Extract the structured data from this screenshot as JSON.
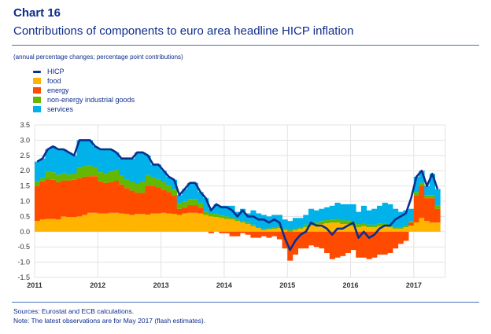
{
  "header": {
    "chart_number": "Chart 16",
    "title": "Contributions of components to euro area headline HICP inflation",
    "subtitle": "(annual percentage changes; percentage point contributions)"
  },
  "legend": [
    {
      "label": "HICP",
      "color": "#0a2f8f",
      "kind": "line"
    },
    {
      "label": "food",
      "color": "#ffb400",
      "kind": "area"
    },
    {
      "label": "energy",
      "color": "#ff4b00",
      "kind": "area"
    },
    {
      "label": "non-energy industrial goods",
      "color": "#65b800",
      "kind": "area"
    },
    {
      "label": "services",
      "color": "#00b1ea",
      "kind": "area"
    }
  ],
  "footnotes": {
    "sources": "Sources: Eurostat and ECB calculations.",
    "note": "Note: The latest observations are for May 2017 (flash estimates)."
  },
  "chart_data": {
    "type": "bar",
    "stacked": true,
    "title": "Contributions of components to euro area headline HICP inflation",
    "subtitle": "(annual percentage changes; percentage point contributions)",
    "xlabel": "",
    "ylabel": "",
    "x_start": "2011-01",
    "x_end": "2017-05",
    "frequency": "monthly",
    "x_tick_labels": [
      "2011",
      "2012",
      "2013",
      "2014",
      "2015",
      "2016",
      "2017"
    ],
    "y_tick_labels": [
      "3.5",
      "3.0",
      "2.5",
      "2.0",
      "1.5",
      "1.0",
      "0.5",
      "0.0",
      "-0.5",
      "-1.0",
      "-1.5"
    ],
    "ylim": [
      -1.5,
      3.5
    ],
    "grid": true,
    "legend_position": "top-left",
    "series": [
      {
        "name": "food",
        "type": "stacked-bar",
        "values": [
          0.35,
          0.4,
          0.42,
          0.42,
          0.4,
          0.5,
          0.48,
          0.48,
          0.5,
          0.55,
          0.62,
          0.62,
          0.6,
          0.6,
          0.62,
          0.62,
          0.6,
          0.58,
          0.55,
          0.58,
          0.58,
          0.56,
          0.6,
          0.6,
          0.62,
          0.6,
          0.58,
          0.55,
          0.6,
          0.62,
          0.62,
          0.6,
          0.55,
          0.5,
          0.48,
          0.45,
          0.42,
          0.4,
          0.35,
          0.3,
          0.25,
          0.18,
          0.12,
          0.05,
          0.08,
          0.1,
          0.12,
          0.05,
          0.0,
          0.05,
          0.1,
          0.15,
          0.2,
          0.22,
          0.25,
          0.28,
          0.3,
          0.3,
          0.25,
          0.25,
          0.2,
          0.15,
          0.18,
          0.15,
          0.15,
          0.18,
          0.2,
          0.15,
          0.1,
          0.1,
          0.15,
          0.2,
          0.3,
          0.45,
          0.35,
          0.3,
          0.3
        ]
      },
      {
        "name": "energy",
        "type": "stacked-bar",
        "values": [
          1.15,
          1.25,
          1.3,
          1.28,
          1.22,
          1.18,
          1.2,
          1.22,
          1.25,
          1.25,
          1.2,
          1.2,
          1.05,
          1.0,
          1.0,
          1.05,
          0.95,
          0.85,
          0.8,
          0.7,
          0.7,
          0.95,
          0.9,
          0.85,
          0.75,
          0.7,
          0.6,
          0.2,
          0.2,
          0.25,
          0.25,
          0.2,
          0.0,
          -0.05,
          0.0,
          -0.05,
          -0.05,
          -0.15,
          -0.15,
          -0.05,
          -0.1,
          -0.2,
          -0.2,
          -0.15,
          -0.2,
          -0.15,
          -0.25,
          -0.55,
          -0.95,
          -0.75,
          -0.55,
          -0.55,
          -0.45,
          -0.5,
          -0.55,
          -0.7,
          -0.9,
          -0.85,
          -0.8,
          -0.7,
          -0.6,
          -0.85,
          -0.85,
          -0.9,
          -0.85,
          -0.75,
          -0.75,
          -0.7,
          -0.55,
          -0.4,
          -0.3,
          0.1,
          0.9,
          1.05,
          0.75,
          0.8,
          0.45
        ]
      },
      {
        "name": "non-energy industrial goods",
        "type": "stacked-bar",
        "values": [
          0.15,
          0.1,
          0.25,
          0.25,
          0.25,
          0.25,
          0.2,
          0.2,
          0.35,
          0.35,
          0.35,
          0.3,
          0.3,
          0.3,
          0.35,
          0.35,
          0.3,
          0.28,
          0.28,
          0.3,
          0.35,
          0.35,
          0.3,
          0.28,
          0.25,
          0.22,
          0.2,
          0.18,
          0.18,
          0.2,
          0.2,
          0.15,
          0.12,
          0.1,
          0.1,
          0.08,
          0.08,
          0.05,
          0.05,
          0.05,
          0.05,
          0.05,
          0.03,
          0.03,
          0.03,
          0.05,
          0.05,
          0.05,
          0.05,
          0.05,
          0.05,
          0.08,
          0.08,
          0.08,
          0.1,
          0.1,
          0.1,
          0.12,
          0.12,
          0.12,
          0.12,
          0.1,
          0.1,
          0.08,
          0.08,
          0.08,
          0.08,
          0.08,
          0.05,
          0.05,
          0.05,
          0.05,
          0.1,
          0.1,
          0.1,
          0.1,
          0.1
        ]
      },
      {
        "name": "services",
        "type": "stacked-bar",
        "values": [
          0.65,
          0.65,
          0.73,
          0.85,
          0.83,
          0.77,
          0.72,
          0.6,
          0.9,
          0.85,
          0.83,
          0.68,
          0.75,
          0.8,
          0.73,
          0.58,
          0.55,
          0.69,
          0.77,
          1.02,
          0.97,
          0.64,
          0.4,
          0.47,
          0.38,
          0.28,
          0.32,
          0.27,
          0.42,
          0.53,
          0.53,
          0.35,
          0.43,
          0.15,
          0.32,
          0.32,
          0.35,
          0.4,
          0.25,
          0.4,
          0.3,
          0.47,
          0.45,
          0.47,
          0.39,
          0.4,
          0.38,
          0.3,
          0.3,
          0.35,
          0.3,
          0.32,
          0.47,
          0.4,
          0.4,
          0.42,
          0.45,
          0.53,
          0.53,
          0.53,
          0.58,
          0.4,
          0.57,
          0.47,
          0.52,
          0.59,
          0.67,
          0.67,
          0.6,
          0.5,
          0.5,
          0.4,
          0.5,
          0.4,
          0.3,
          0.7,
          0.55
        ]
      },
      {
        "name": "HICP",
        "type": "line",
        "values": [
          2.3,
          2.4,
          2.7,
          2.8,
          2.7,
          2.7,
          2.6,
          2.5,
          3.0,
          3.0,
          3.0,
          2.8,
          2.7,
          2.7,
          2.7,
          2.6,
          2.4,
          2.4,
          2.4,
          2.6,
          2.6,
          2.5,
          2.2,
          2.2,
          2.0,
          1.8,
          1.7,
          1.2,
          1.4,
          1.6,
          1.6,
          1.3,
          1.1,
          0.7,
          0.9,
          0.8,
          0.8,
          0.7,
          0.5,
          0.7,
          0.5,
          0.5,
          0.4,
          0.4,
          0.3,
          0.4,
          0.3,
          -0.2,
          -0.6,
          -0.3,
          -0.1,
          0.0,
          0.3,
          0.2,
          0.2,
          0.1,
          -0.1,
          0.1,
          0.1,
          0.2,
          0.3,
          -0.2,
          0.0,
          -0.2,
          -0.1,
          0.1,
          0.2,
          0.2,
          0.4,
          0.5,
          0.6,
          1.1,
          1.8,
          2.0,
          1.5,
          1.9,
          1.4
        ]
      }
    ]
  }
}
